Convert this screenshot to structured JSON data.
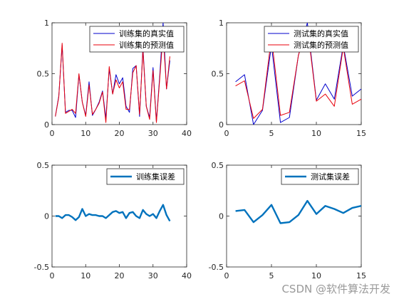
{
  "watermark": "CSDN @软件算法开发",
  "colors": {
    "true_line": "#0000cc",
    "pred_line": "#e8000b",
    "error_line": "#0072bd",
    "axis": "#262626"
  },
  "chart_data": [
    {
      "type": "line",
      "panel": "train-values",
      "xlim": [
        0,
        40
      ],
      "ylim": [
        0,
        1
      ],
      "xticks": [
        "0",
        "10",
        "20",
        "30",
        "40"
      ],
      "yticks": [
        "0",
        "0.5",
        "1"
      ],
      "legend": "top-right",
      "grid": false,
      "x": [
        1,
        2,
        3,
        4,
        5,
        6,
        7,
        8,
        9,
        10,
        11,
        12,
        13,
        14,
        15,
        16,
        17,
        18,
        19,
        20,
        21,
        22,
        23,
        24,
        25,
        26,
        27,
        28,
        29,
        30,
        31,
        32,
        33,
        34,
        35
      ],
      "series": [
        {
          "name": "训练集的真实值",
          "color": "#0000cc",
          "values": [
            0.08,
            0.28,
            0.78,
            0.12,
            0.14,
            0.14,
            0.07,
            0.49,
            0.22,
            0.09,
            0.42,
            0.09,
            0.15,
            0.22,
            0.33,
            0.06,
            0.55,
            0.3,
            0.49,
            0.4,
            0.46,
            0.18,
            0.12,
            0.55,
            0.58,
            0.08,
            0.76,
            0.18,
            0.07,
            0.56,
            0.03,
            0.48,
            1.0,
            0.35,
            0.63
          ]
        },
        {
          "name": "训练集的预测值",
          "color": "#e8000b",
          "values": [
            0.08,
            0.27,
            0.8,
            0.11,
            0.13,
            0.15,
            0.11,
            0.5,
            0.22,
            0.08,
            0.39,
            0.1,
            0.15,
            0.21,
            0.32,
            0.02,
            0.57,
            0.3,
            0.44,
            0.36,
            0.42,
            0.15,
            0.15,
            0.51,
            0.58,
            0.1,
            0.73,
            0.18,
            0.05,
            0.53,
            0.02,
            0.45,
            0.89,
            0.35,
            0.67
          ]
        }
      ]
    },
    {
      "type": "line",
      "panel": "test-values",
      "xlim": [
        0,
        15
      ],
      "ylim": [
        0,
        1
      ],
      "xticks": [
        "0",
        "5",
        "10",
        "15"
      ],
      "yticks": [
        "0",
        "0.5",
        "1"
      ],
      "legend": "top-right",
      "grid": false,
      "x": [
        1,
        2,
        3,
        4,
        5,
        6,
        7,
        8,
        9,
        10,
        11,
        12,
        13,
        14,
        15
      ],
      "series": [
        {
          "name": "测试集的真实值",
          "color": "#0000cc",
          "values": [
            0.42,
            0.49,
            0.0,
            0.14,
            0.78,
            0.02,
            0.07,
            0.68,
            1.0,
            0.24,
            0.4,
            0.25,
            0.78,
            0.28,
            0.35
          ]
        },
        {
          "name": "测试集的预测值",
          "color": "#e8000b",
          "values": [
            0.38,
            0.43,
            0.06,
            0.15,
            0.86,
            0.09,
            0.12,
            0.68,
            0.96,
            0.23,
            0.3,
            0.18,
            0.76,
            0.2,
            0.25
          ]
        }
      ]
    },
    {
      "type": "line",
      "panel": "train-error",
      "xlim": [
        0,
        40
      ],
      "ylim": [
        -0.5,
        0.5
      ],
      "xticks": [
        "0",
        "10",
        "20",
        "30",
        "40"
      ],
      "yticks": [
        "-0.5",
        "0",
        "0.5"
      ],
      "legend": "top-right",
      "grid": false,
      "x": [
        1,
        2,
        3,
        4,
        5,
        6,
        7,
        8,
        9,
        10,
        11,
        12,
        13,
        14,
        15,
        16,
        17,
        18,
        19,
        20,
        21,
        22,
        23,
        24,
        25,
        26,
        27,
        28,
        29,
        30,
        31,
        32,
        33,
        34,
        35
      ],
      "series": [
        {
          "name": "训练集误差",
          "color": "#0072bd",
          "values": [
            0.0,
            0.0,
            -0.02,
            0.01,
            0.01,
            -0.01,
            -0.04,
            -0.01,
            0.07,
            0.0,
            0.02,
            0.01,
            0.01,
            0.0,
            0.0,
            -0.02,
            0.01,
            0.04,
            0.05,
            0.03,
            0.04,
            -0.02,
            0.03,
            0.04,
            0.0,
            -0.02,
            0.06,
            0.02,
            0.0,
            0.02,
            -0.02,
            0.05,
            0.11,
            0.01,
            -0.05
          ]
        }
      ]
    },
    {
      "type": "line",
      "panel": "test-error",
      "xlim": [
        0,
        15
      ],
      "ylim": [
        -0.5,
        0.5
      ],
      "xticks": [
        "0",
        "5",
        "10",
        "15"
      ],
      "yticks": [
        "-0.5",
        "0",
        "0.5"
      ],
      "legend": "top-right",
      "grid": false,
      "x": [
        1,
        2,
        3,
        4,
        5,
        6,
        7,
        8,
        9,
        10,
        11,
        12,
        13,
        14,
        15
      ],
      "series": [
        {
          "name": "测试集误差",
          "color": "#0072bd",
          "values": [
            0.05,
            0.06,
            -0.06,
            0.01,
            0.11,
            -0.07,
            -0.06,
            0.01,
            0.15,
            0.02,
            0.1,
            0.07,
            0.03,
            0.08,
            0.1
          ]
        }
      ]
    }
  ]
}
